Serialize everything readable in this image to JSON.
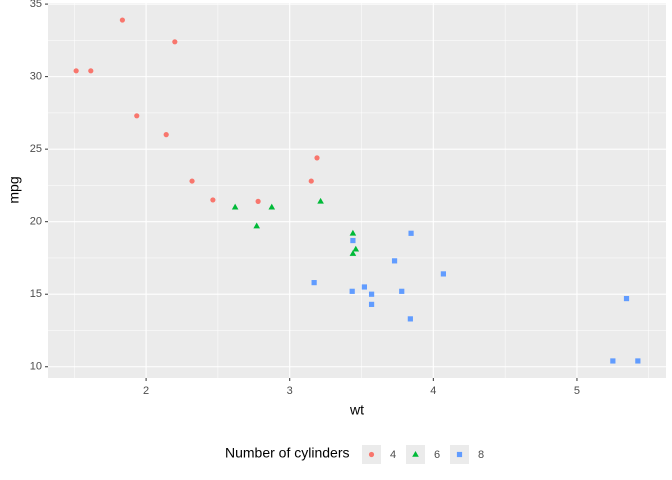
{
  "chart_data": {
    "type": "scatter",
    "x_label": "wt",
    "y_label": "mpg",
    "legend_title": "Number of cylinders",
    "legend_position": "bottom",
    "series": [
      {
        "name": "4",
        "color": "#F8766D",
        "shape": "circle",
        "x": [
          2.32,
          3.19,
          3.15,
          2.2,
          1.615,
          1.835,
          2.465,
          1.935,
          2.14,
          1.513,
          2.78
        ],
        "values": [
          22.8,
          24.4,
          22.8,
          32.4,
          30.4,
          33.9,
          21.5,
          27.3,
          26.0,
          30.4,
          21.4
        ]
      },
      {
        "name": "6",
        "color": "#00BA38",
        "shape": "triangle",
        "x": [
          2.62,
          2.875,
          3.215,
          3.46,
          3.44,
          3.44,
          2.77
        ],
        "values": [
          21.0,
          21.0,
          21.4,
          18.1,
          19.2,
          17.8,
          19.7
        ]
      },
      {
        "name": "8",
        "color": "#619CFF",
        "shape": "square",
        "x": [
          3.44,
          3.57,
          4.07,
          3.73,
          3.78,
          5.25,
          5.424,
          5.345,
          3.52,
          3.435,
          3.84,
          3.845,
          3.17,
          3.57
        ],
        "values": [
          18.7,
          14.3,
          16.4,
          17.3,
          15.2,
          10.4,
          10.4,
          14.7,
          15.5,
          15.2,
          13.3,
          19.2,
          15.8,
          15.0
        ]
      }
    ],
    "xlim": [
      1.317,
      5.62
    ],
    "ylim": [
      9.225,
      35.075
    ],
    "xticks": [
      2,
      3,
      4,
      5
    ],
    "yticks": [
      10,
      15,
      20,
      25,
      30,
      35
    ],
    "x_minor_ticks": [
      1.5,
      2.5,
      3.5,
      4.5,
      5.5
    ],
    "y_minor_ticks": [
      12.5,
      17.5,
      22.5,
      27.5,
      32.5
    ],
    "grid": true
  }
}
